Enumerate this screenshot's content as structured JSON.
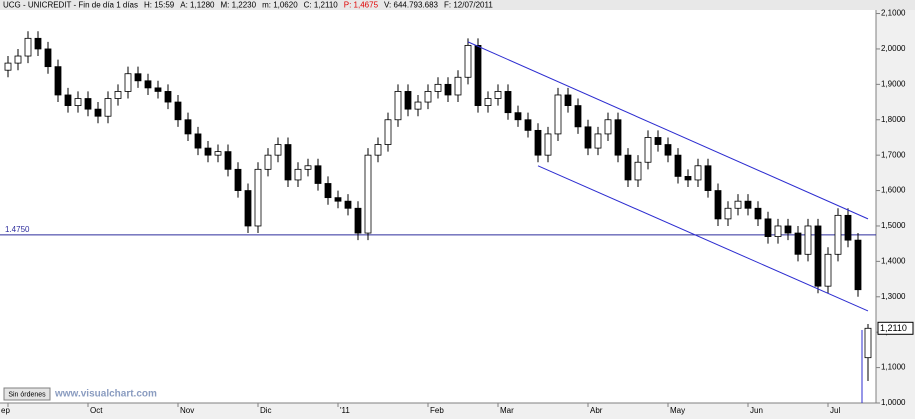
{
  "chart_data": {
    "type": "candlestick",
    "header": [
      {
        "text": "UCG - UNICREDIT - Fin de día 1 días",
        "color": "#000000"
      },
      {
        "text": "H: 15:59",
        "color": "#000000"
      },
      {
        "text": "A: 1,1280",
        "color": "#000000"
      },
      {
        "text": "M: 1,2230",
        "color": "#000000"
      },
      {
        "text": "m: 1,0620",
        "color": "#000000"
      },
      {
        "text": "C: 1,2110",
        "color": "#000000"
      },
      {
        "text": "P: 1,4675",
        "color": "#e00000"
      },
      {
        "text": "V: 644.793.683",
        "color": "#000000"
      },
      {
        "text": "F: 12/07/2011",
        "color": "#000000"
      }
    ],
    "categories": [
      "ep",
      null,
      null,
      null,
      null,
      null,
      null,
      null,
      "Oct",
      null,
      null,
      null,
      null,
      null,
      null,
      null,
      null,
      "Nov",
      null,
      null,
      null,
      null,
      null,
      null,
      null,
      "Dic",
      null,
      null,
      null,
      null,
      null,
      null,
      null,
      "'11",
      null,
      null,
      null,
      null,
      null,
      null,
      null,
      null,
      "Feb",
      null,
      null,
      null,
      null,
      null,
      null,
      "Mar",
      null,
      null,
      null,
      null,
      null,
      null,
      null,
      null,
      "Abr",
      null,
      null,
      null,
      null,
      null,
      null,
      null,
      "May",
      null,
      null,
      null,
      null,
      null,
      null,
      null,
      "Jun",
      null,
      null,
      null,
      null,
      null,
      null,
      null,
      "Jul",
      null,
      null,
      null,
      null
    ],
    "open": [
      1.94,
      1.96,
      1.98,
      2.03,
      2.0,
      1.95,
      1.87,
      1.84,
      1.86,
      1.83,
      1.81,
      1.86,
      1.88,
      1.93,
      1.91,
      1.89,
      1.88,
      1.85,
      1.8,
      1.76,
      1.72,
      1.7,
      1.71,
      1.66,
      1.6,
      1.5,
      1.66,
      1.7,
      1.73,
      1.63,
      1.66,
      1.67,
      1.62,
      1.58,
      1.57,
      1.55,
      1.48,
      1.7,
      1.73,
      1.8,
      1.88,
      1.83,
      1.85,
      1.88,
      1.9,
      1.87,
      1.92,
      2.01,
      1.84,
      1.86,
      1.88,
      1.82,
      1.8,
      1.77,
      1.7,
      1.76,
      1.87,
      1.84,
      1.78,
      1.72,
      1.76,
      1.8,
      1.7,
      1.63,
      1.68,
      1.75,
      1.73,
      1.7,
      1.64,
      1.63,
      1.67,
      1.6,
      1.52,
      1.55,
      1.57,
      1.55,
      1.52,
      1.47,
      1.5,
      1.48,
      1.42,
      1.5,
      1.33,
      1.42,
      1.53,
      1.46,
      1.128
    ],
    "high": [
      1.98,
      2.0,
      2.05,
      2.05,
      2.02,
      1.97,
      1.89,
      1.88,
      1.88,
      1.85,
      1.88,
      1.9,
      1.95,
      1.95,
      1.93,
      1.91,
      1.9,
      1.87,
      1.82,
      1.78,
      1.74,
      1.73,
      1.73,
      1.68,
      1.62,
      1.68,
      1.72,
      1.75,
      1.75,
      1.68,
      1.69,
      1.69,
      1.64,
      1.6,
      1.59,
      1.57,
      1.72,
      1.75,
      1.82,
      1.9,
      1.9,
      1.87,
      1.9,
      1.92,
      1.92,
      1.94,
      2.03,
      2.03,
      1.88,
      1.9,
      1.9,
      1.84,
      1.82,
      1.79,
      1.78,
      1.89,
      1.89,
      1.86,
      1.8,
      1.78,
      1.82,
      1.82,
      1.72,
      1.7,
      1.77,
      1.77,
      1.75,
      1.72,
      1.66,
      1.69,
      1.69,
      1.62,
      1.57,
      1.59,
      1.59,
      1.57,
      1.54,
      1.52,
      1.52,
      1.5,
      1.52,
      1.52,
      1.44,
      1.55,
      1.55,
      1.48,
      1.223
    ],
    "low": [
      1.92,
      1.94,
      1.96,
      1.98,
      1.93,
      1.85,
      1.82,
      1.82,
      1.81,
      1.79,
      1.79,
      1.84,
      1.86,
      1.89,
      1.87,
      1.86,
      1.83,
      1.78,
      1.74,
      1.7,
      1.68,
      1.68,
      1.64,
      1.58,
      1.48,
      1.48,
      1.64,
      1.68,
      1.61,
      1.61,
      1.64,
      1.6,
      1.56,
      1.55,
      1.53,
      1.46,
      1.46,
      1.68,
      1.71,
      1.78,
      1.81,
      1.81,
      1.83,
      1.86,
      1.85,
      1.85,
      1.9,
      1.82,
      1.82,
      1.84,
      1.8,
      1.78,
      1.75,
      1.68,
      1.68,
      1.74,
      1.82,
      1.76,
      1.7,
      1.7,
      1.74,
      1.68,
      1.61,
      1.61,
      1.66,
      1.71,
      1.68,
      1.62,
      1.61,
      1.61,
      1.58,
      1.5,
      1.5,
      1.53,
      1.53,
      1.5,
      1.45,
      1.45,
      1.46,
      1.4,
      1.4,
      1.31,
      1.31,
      1.4,
      1.44,
      1.3,
      1.062
    ],
    "close": [
      1.96,
      1.98,
      2.03,
      2.0,
      1.95,
      1.87,
      1.84,
      1.86,
      1.83,
      1.81,
      1.86,
      1.88,
      1.93,
      1.91,
      1.89,
      1.88,
      1.85,
      1.8,
      1.76,
      1.72,
      1.7,
      1.71,
      1.66,
      1.6,
      1.5,
      1.66,
      1.7,
      1.73,
      1.63,
      1.66,
      1.67,
      1.62,
      1.58,
      1.57,
      1.55,
      1.48,
      1.7,
      1.73,
      1.8,
      1.88,
      1.83,
      1.85,
      1.88,
      1.9,
      1.87,
      1.92,
      2.01,
      1.84,
      1.86,
      1.88,
      1.82,
      1.8,
      1.77,
      1.7,
      1.76,
      1.87,
      1.84,
      1.78,
      1.72,
      1.76,
      1.8,
      1.7,
      1.63,
      1.68,
      1.75,
      1.73,
      1.7,
      1.64,
      1.63,
      1.67,
      1.6,
      1.52,
      1.55,
      1.57,
      1.55,
      1.52,
      1.47,
      1.5,
      1.48,
      1.42,
      1.5,
      1.33,
      1.42,
      1.53,
      1.46,
      1.32,
      1.211
    ],
    "up_color": "#ffffff",
    "down_color": "#000000",
    "ylim": [
      1.0,
      2.11
    ],
    "yticks": [
      {
        "value": 1.0,
        "label": "1,0000"
      },
      {
        "value": 1.1,
        "label": "1,1000"
      },
      {
        "value": 1.2,
        "label": "1,2000"
      },
      {
        "value": 1.3,
        "label": "1,3000"
      },
      {
        "value": 1.4,
        "label": "1,4000"
      },
      {
        "value": 1.5,
        "label": "1,5000"
      },
      {
        "value": 1.6,
        "label": "1,6000"
      },
      {
        "value": 1.7,
        "label": "1,7000"
      },
      {
        "value": 1.8,
        "label": "1,8000"
      },
      {
        "value": 1.9,
        "label": "1,9000"
      },
      {
        "value": 2.0,
        "label": "2,0000"
      },
      {
        "value": 2.1,
        "label": "2,1000"
      }
    ],
    "hline": {
      "value": 1.475,
      "label": "1.4750",
      "color": "#2c2c9c"
    },
    "trendlines": [
      {
        "x": [
          46,
          86
        ],
        "values": [
          2.02,
          1.52
        ],
        "color": "#2c2cd0"
      },
      {
        "x": [
          53,
          86
        ],
        "values": [
          1.67,
          1.26
        ],
        "color": "#2c2cd0"
      }
    ],
    "last_price": {
      "value": 1.211,
      "label": "1,2110"
    },
    "button": "Sin órdenes",
    "watermark": "www.visualchart.com"
  }
}
